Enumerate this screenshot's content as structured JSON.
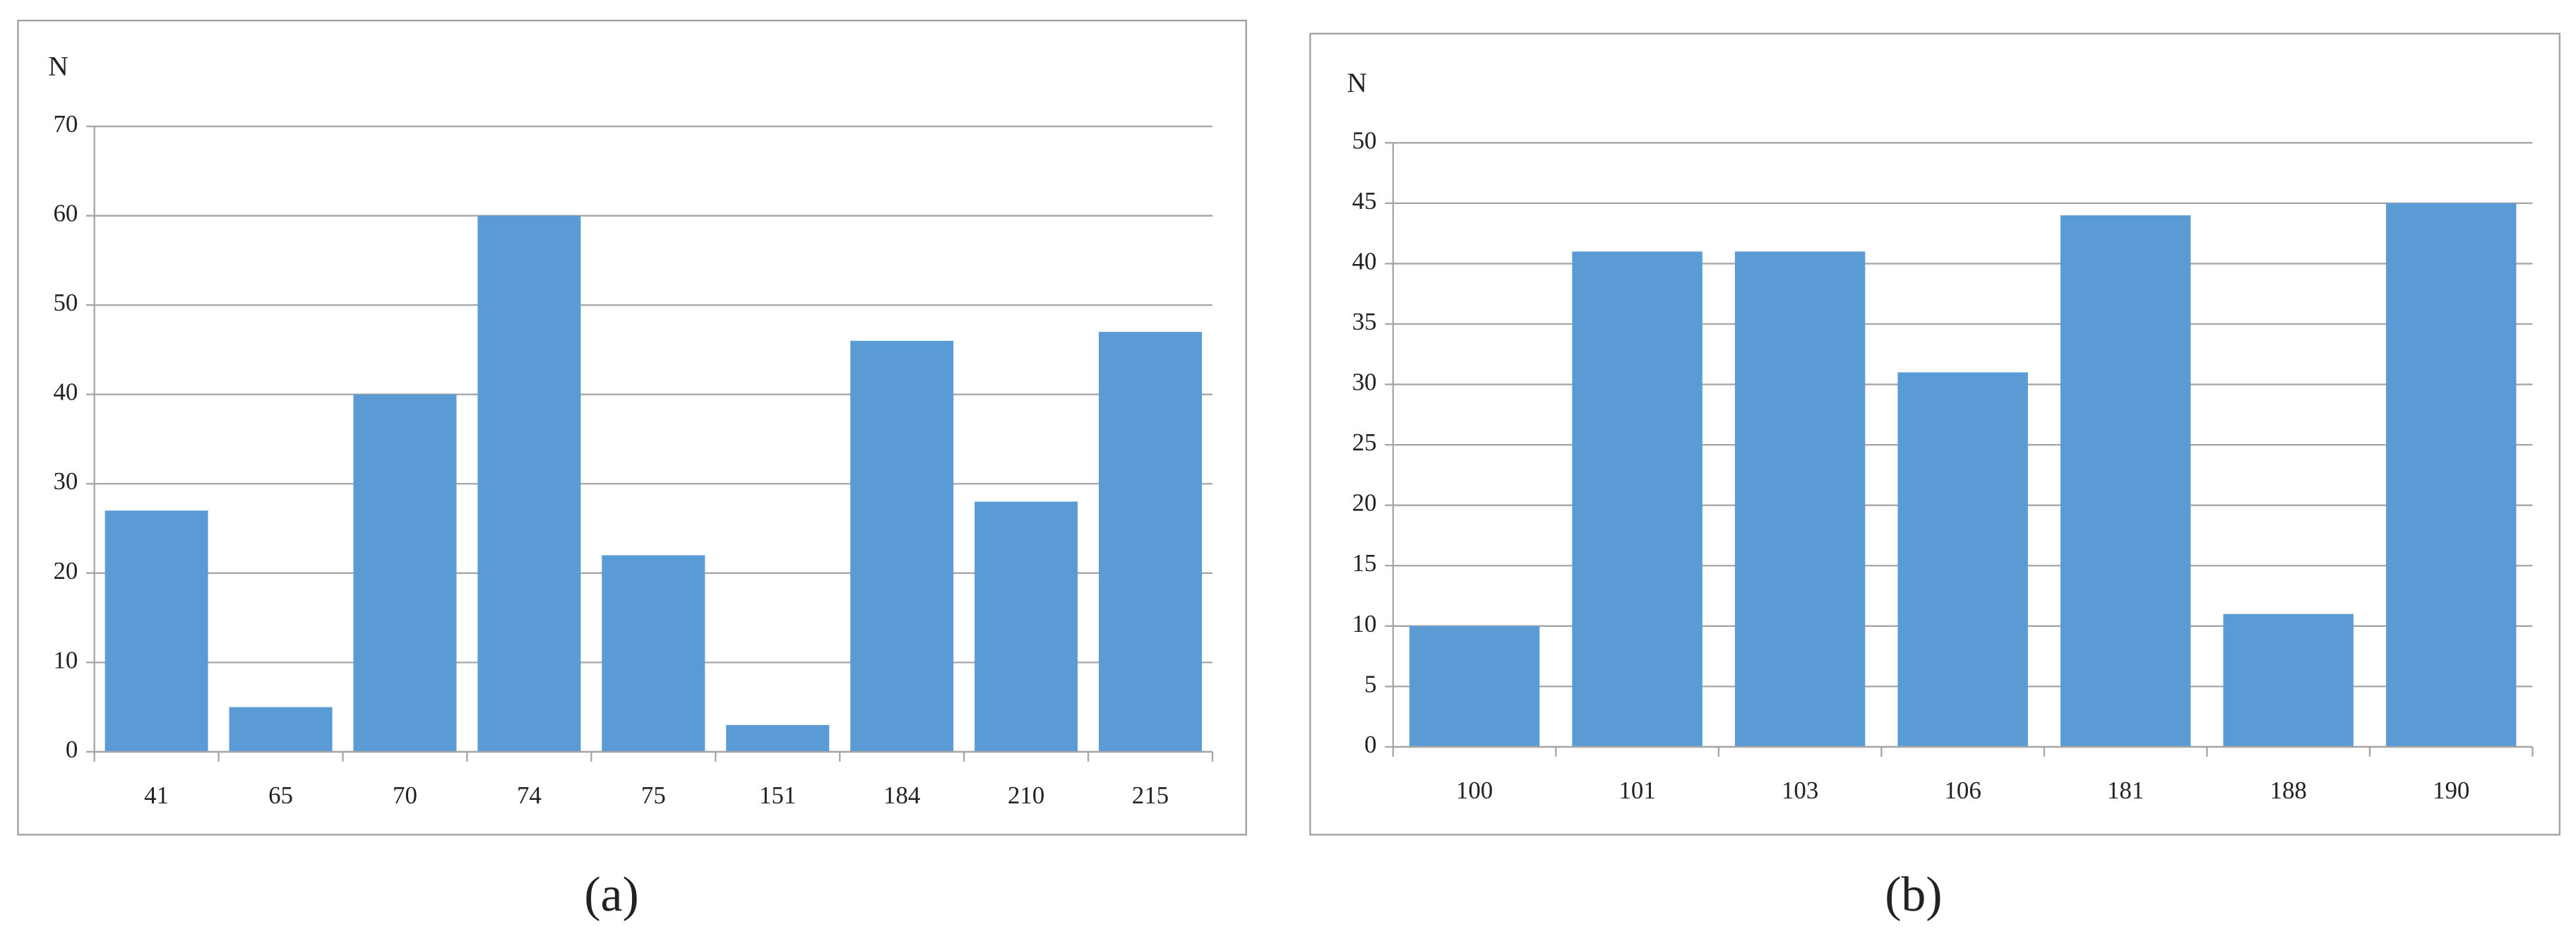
{
  "chart_data": [
    {
      "type": "bar",
      "caption": "(a)",
      "ylabel": "N",
      "categories": [
        "41",
        "65",
        "70",
        "74",
        "75",
        "151",
        "184",
        "210",
        "215"
      ],
      "values": [
        27,
        5,
        40,
        60,
        22,
        3,
        46,
        28,
        47
      ],
      "color": "#5b9bd5",
      "ylim": [
        0,
        70
      ],
      "yticks": [
        0,
        10,
        20,
        30,
        40,
        50,
        60,
        70
      ],
      "grid": true
    },
    {
      "type": "bar",
      "caption": "(b)",
      "ylabel": "N",
      "categories": [
        "100",
        "101",
        "103",
        "106",
        "181",
        "188",
        "190"
      ],
      "values": [
        10,
        41,
        41,
        31,
        44,
        11,
        45
      ],
      "color": "#5b9bd5",
      "ylim": [
        0,
        50
      ],
      "yticks": [
        0,
        5,
        10,
        15,
        20,
        25,
        30,
        35,
        40,
        45,
        50
      ],
      "grid": true
    }
  ]
}
